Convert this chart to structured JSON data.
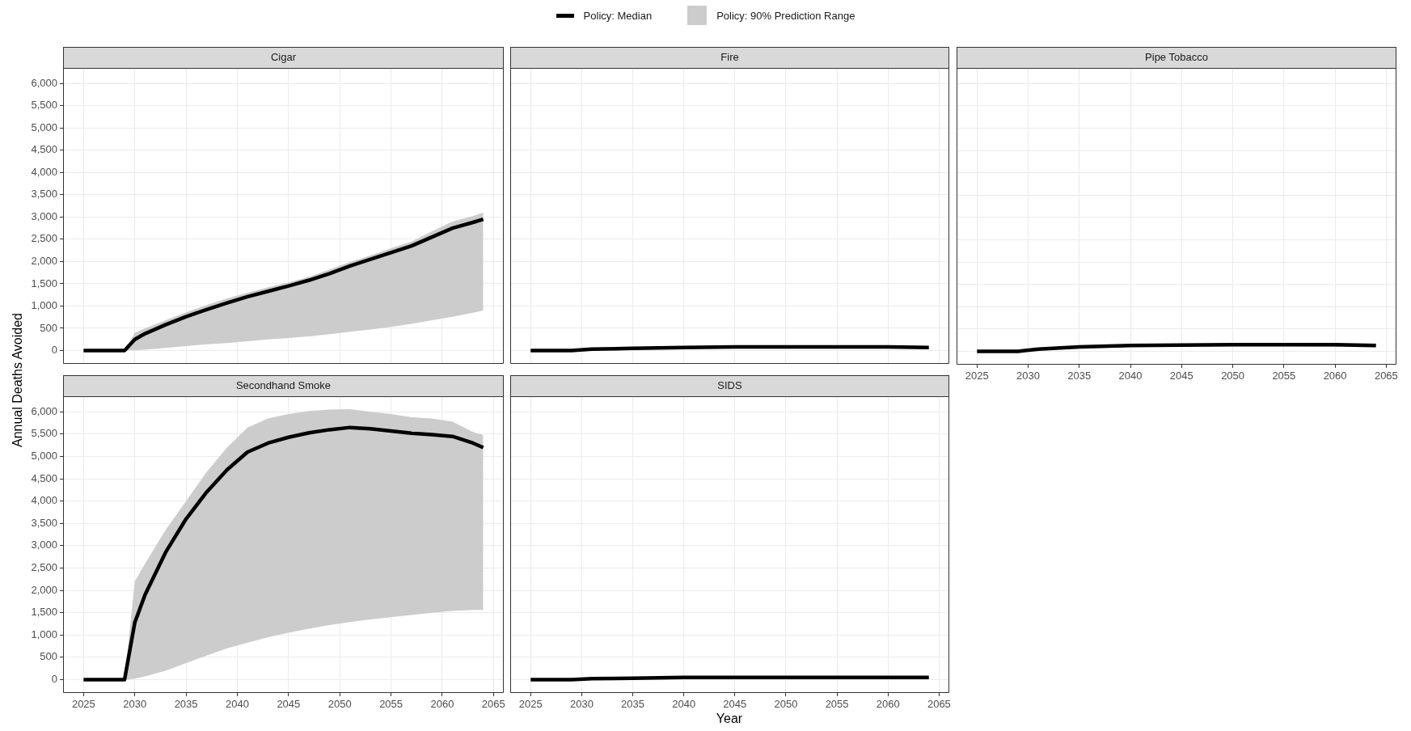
{
  "chart_data": [
    {
      "type": "line",
      "title": "Cigar",
      "ylabel": "Annual Deaths Avoided",
      "legend": "top",
      "grid": true,
      "tick_labels": "y",
      "xlim": [
        2023,
        2066
      ],
      "ylim": [
        -300,
        6350
      ],
      "xticks": [
        2025,
        2030,
        2035,
        2040,
        2045,
        2050,
        2055,
        2060,
        2065
      ],
      "yticks": [
        {
          "value": 0,
          "label": "0"
        },
        {
          "value": 500,
          "label": "500"
        },
        {
          "value": 1000,
          "label": "1,000"
        },
        {
          "value": 1500,
          "label": "1,500"
        },
        {
          "value": 2000,
          "label": "2,000"
        },
        {
          "value": 2500,
          "label": "2,500"
        },
        {
          "value": 3000,
          "label": "3,000"
        },
        {
          "value": 3500,
          "label": "3,500"
        },
        {
          "value": 4000,
          "label": "4,000"
        },
        {
          "value": 4500,
          "label": "4,500"
        },
        {
          "value": 5000,
          "label": "5,000"
        },
        {
          "value": 5500,
          "label": "5,500"
        },
        {
          "value": 6000,
          "label": "6,000"
        }
      ],
      "marker": "none",
      "x": [
        2025,
        2029,
        2030,
        2031,
        2033,
        2035,
        2037,
        2039,
        2041,
        2043,
        2045,
        2047,
        2049,
        2051,
        2053,
        2055,
        2057,
        2059,
        2061,
        2063,
        2064
      ],
      "series": [
        {
          "name": "Policy: Median",
          "type": "line",
          "color": "#000000",
          "values": [
            0,
            0,
            250,
            380,
            580,
            760,
            920,
            1070,
            1210,
            1330,
            1450,
            1580,
            1730,
            1900,
            2050,
            2200,
            2350,
            2550,
            2750,
            2880,
            2950
          ]
        },
        {
          "name": "Policy: 90% Prediction Range",
          "type": "area",
          "color": "#cccccc",
          "values": [
            null,
            null,
            null,
            null,
            null,
            null,
            null,
            null,
            null,
            null,
            null,
            null,
            null,
            null,
            null,
            null,
            null,
            null,
            null,
            null,
            null
          ],
          "lower": [
            0,
            0,
            10,
            20,
            60,
            100,
            140,
            170,
            210,
            250,
            280,
            320,
            370,
            420,
            470,
            530,
            600,
            680,
            760,
            850,
            900
          ],
          "upper": [
            0,
            0,
            400,
            500,
            680,
            860,
            1020,
            1170,
            1300,
            1420,
            1530,
            1660,
            1820,
            1990,
            2140,
            2300,
            2450,
            2680,
            2900,
            3020,
            3100
          ]
        }
      ]
    },
    {
      "type": "line",
      "title": "Fire",
      "grid": true,
      "tick_labels": false,
      "xlim": [
        2023,
        2066
      ],
      "ylim": [
        -300,
        6350
      ],
      "xticks": [
        2025,
        2030,
        2035,
        2040,
        2045,
        2050,
        2055,
        2060,
        2065
      ],
      "yticks": [
        0,
        500,
        1000,
        1500,
        2000,
        2500,
        3000,
        3500,
        4000,
        4500,
        5000,
        5500,
        6000
      ],
      "marker": "none",
      "x": [
        2025,
        2029,
        2031,
        2035,
        2040,
        2045,
        2050,
        2055,
        2060,
        2064
      ],
      "series": [
        {
          "type": "line",
          "color": "#000000",
          "values": [
            0,
            0,
            30,
            50,
            70,
            80,
            80,
            80,
            80,
            70
          ]
        }
      ]
    },
    {
      "type": "line",
      "title": "Pipe Tobacco",
      "grid": true,
      "tick_labels": "x",
      "xlim": [
        2023,
        2066
      ],
      "ylim": [
        -300,
        6350
      ],
      "xticks": [
        2025,
        2030,
        2035,
        2040,
        2045,
        2050,
        2055,
        2060,
        2065
      ],
      "yticks": [
        0,
        500,
        1000,
        1500,
        2000,
        2500,
        3000,
        3500,
        4000,
        4500,
        5000,
        5500,
        6000
      ],
      "marker": "none",
      "x": [
        2025,
        2029,
        2031,
        2035,
        2040,
        2045,
        2050,
        2055,
        2060,
        2064
      ],
      "series": [
        {
          "type": "line",
          "color": "#000000",
          "values": [
            0,
            0,
            50,
            100,
            130,
            140,
            150,
            150,
            150,
            130
          ]
        },
        {
          "type": "area",
          "color": "#cccccc",
          "values": [
            null,
            null,
            null,
            null,
            null,
            null,
            null,
            null,
            null,
            null
          ],
          "lower": [
            0,
            0,
            40,
            80,
            100,
            110,
            110,
            110,
            100,
            90
          ],
          "upper": [
            0,
            0,
            50,
            100,
            130,
            140,
            150,
            150,
            150,
            130
          ]
        }
      ]
    },
    {
      "type": "line",
      "title": "Secondhand Smoke",
      "grid": true,
      "xlim": [
        2023,
        2066
      ],
      "ylim": [
        -300,
        6350
      ],
      "xticks": [
        2025,
        2030,
        2035,
        2040,
        2045,
        2050,
        2055,
        2060,
        2065
      ],
      "yticks": [
        {
          "value": 0,
          "label": "0"
        },
        {
          "value": 500,
          "label": "500"
        },
        {
          "value": 1000,
          "label": "1,000"
        },
        {
          "value": 1500,
          "label": "1,500"
        },
        {
          "value": 2000,
          "label": "2,000"
        },
        {
          "value": 2500,
          "label": "2,500"
        },
        {
          "value": 3000,
          "label": "3,000"
        },
        {
          "value": 3500,
          "label": "3,500"
        },
        {
          "value": 4000,
          "label": "4,000"
        },
        {
          "value": 4500,
          "label": "4,500"
        },
        {
          "value": 5000,
          "label": "5,000"
        },
        {
          "value": 5500,
          "label": "5,500"
        },
        {
          "value": 6000,
          "label": "6,000"
        }
      ],
      "marker": "none",
      "x": [
        2025,
        2029,
        2030,
        2031,
        2033,
        2035,
        2037,
        2039,
        2041,
        2043,
        2045,
        2047,
        2049,
        2051,
        2053,
        2055,
        2057,
        2059,
        2061,
        2063,
        2064
      ],
      "series": [
        {
          "type": "line",
          "color": "#000000",
          "values": [
            0,
            0,
            1280,
            1900,
            2850,
            3600,
            4200,
            4700,
            5100,
            5300,
            5430,
            5530,
            5600,
            5650,
            5620,
            5570,
            5520,
            5490,
            5450,
            5300,
            5200
          ]
        },
        {
          "type": "area",
          "color": "#cccccc",
          "values": [
            null,
            null,
            null,
            null,
            null,
            null,
            null,
            null,
            null,
            null,
            null,
            null,
            null,
            null,
            null,
            null,
            null,
            null,
            null,
            null,
            null
          ],
          "lower": [
            0,
            0,
            20,
            70,
            200,
            370,
            540,
            700,
            830,
            950,
            1050,
            1140,
            1220,
            1290,
            1350,
            1400,
            1450,
            1500,
            1540,
            1560,
            1560
          ],
          "upper": [
            0,
            0,
            2200,
            2600,
            3350,
            4000,
            4650,
            5200,
            5650,
            5850,
            5950,
            6020,
            6050,
            6060,
            6000,
            5950,
            5880,
            5850,
            5780,
            5550,
            5480
          ]
        }
      ]
    },
    {
      "type": "line",
      "title": "SIDS",
      "xlabel": "Year",
      "grid": true,
      "tick_labels": "x",
      "xlim": [
        2023,
        2066
      ],
      "ylim": [
        -300,
        6350
      ],
      "xticks": [
        2025,
        2030,
        2035,
        2040,
        2045,
        2050,
        2055,
        2060,
        2065
      ],
      "yticks": [
        0,
        500,
        1000,
        1500,
        2000,
        2500,
        3000,
        3500,
        4000,
        4500,
        5000,
        5500,
        6000
      ],
      "marker": "none",
      "x": [
        2025,
        2029,
        2031,
        2035,
        2040,
        2045,
        2050,
        2055,
        2060,
        2064
      ],
      "series": [
        {
          "type": "line",
          "color": "#000000",
          "values": [
            0,
            0,
            20,
            30,
            50,
            50,
            50,
            50,
            50,
            50
          ]
        }
      ]
    }
  ]
}
